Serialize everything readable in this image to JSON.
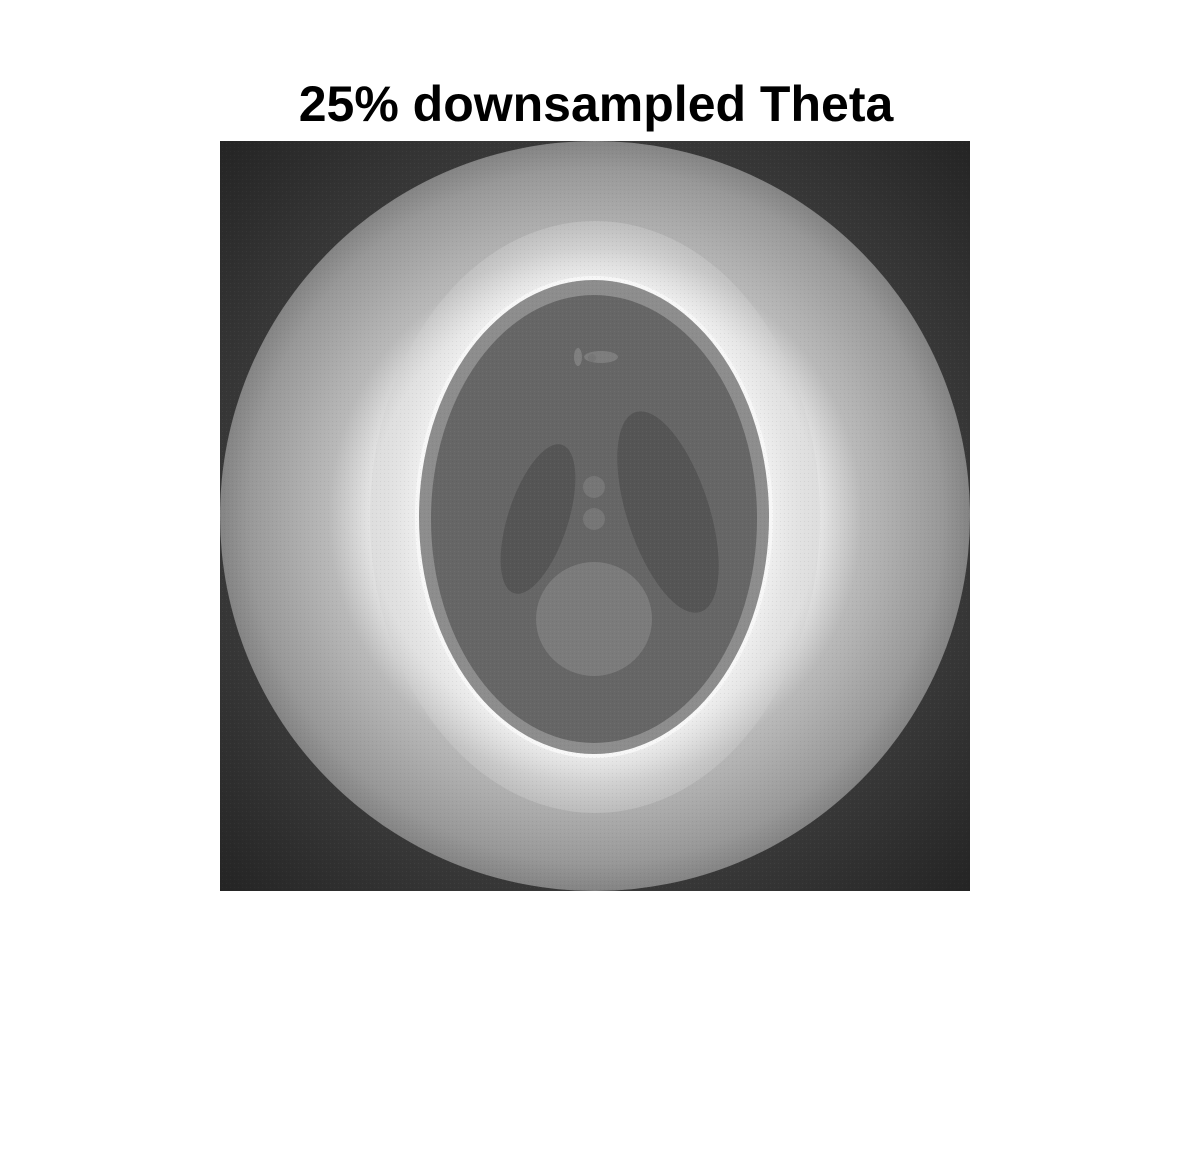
{
  "figure": {
    "title": "25% downsampled Theta"
  },
  "image": {
    "colormap": "gray",
    "subject": "Shepp-Logan phantom reconstruction"
  },
  "colors": {
    "background": "#ffffff",
    "title": "#000000"
  }
}
